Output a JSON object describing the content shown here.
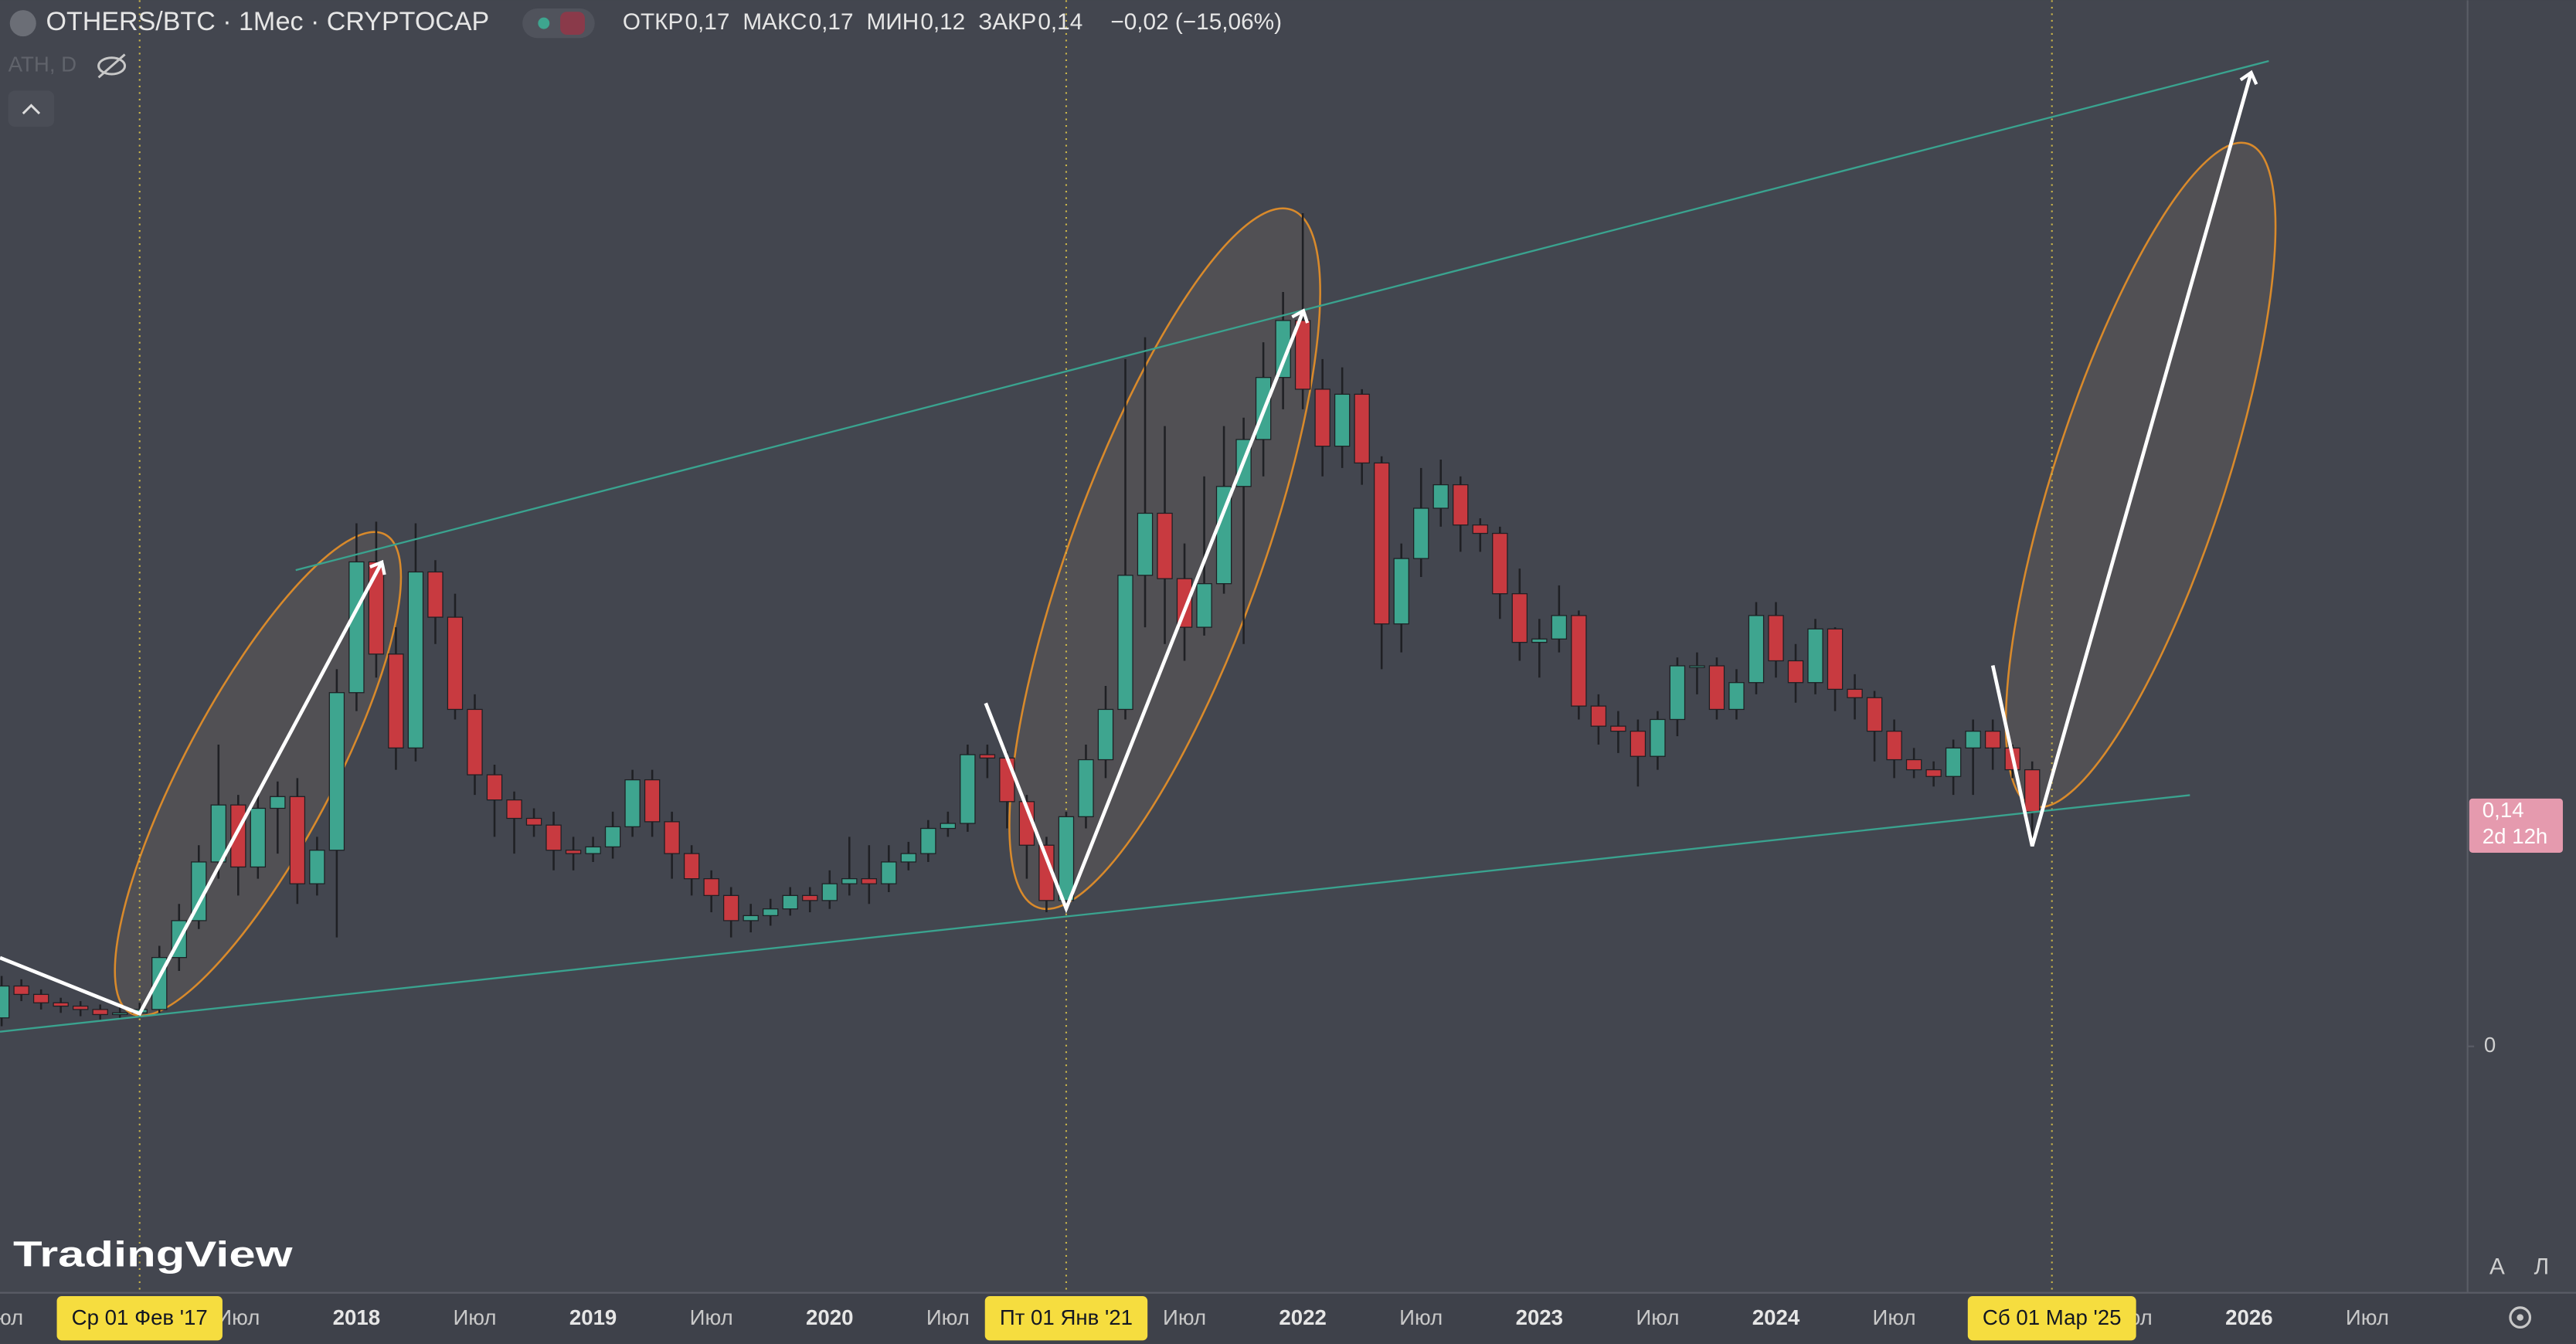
{
  "chart_data": {
    "type": "candlestick",
    "legend_bar": {
      "symbol": "OTHERS/BTC · 1Мес · CRYPTOCAP",
      "fields": [
        {
          "name": "ОТКР",
          "value": {
            "value": 0.17,
            "label": "0,17"
          }
        },
        {
          "name": "МАКС",
          "value": {
            "value": 0.17,
            "label": "0,17"
          }
        },
        {
          "name": "МИН",
          "value": {
            "value": 0.12,
            "label": "0,12"
          }
        },
        {
          "name": "ЗАКР",
          "value": {
            "value": 0.14,
            "label": "0,14"
          }
        }
      ],
      "change": "−0,02 (−15,06%)"
    },
    "indicator": "ATH, D",
    "categories": [
      "Июл",
      null,
      null,
      null,
      null,
      null,
      null,
      null,
      null,
      null,
      null,
      null,
      "Июл",
      null,
      null,
      null,
      null,
      null,
      "2018",
      null,
      null,
      null,
      null,
      null,
      "Июл",
      null,
      null,
      null,
      null,
      null,
      "2019",
      null,
      null,
      null,
      null,
      null,
      "Июл",
      null,
      null,
      null,
      null,
      null,
      "2020",
      null,
      null,
      null,
      null,
      null,
      "Июл",
      null,
      null,
      null,
      null,
      null,
      null,
      null,
      null,
      null,
      null,
      null,
      "Июл",
      null,
      null,
      null,
      null,
      null,
      "2022",
      null,
      null,
      null,
      null,
      null,
      "Июл",
      null,
      null,
      null,
      null,
      null,
      "2023",
      null,
      null,
      null,
      null,
      null,
      "Июл",
      null,
      null,
      null,
      null,
      null,
      "2024",
      null,
      null,
      null,
      null,
      null,
      "Июл",
      null,
      null,
      null,
      null,
      null,
      null,
      null,
      null,
      null,
      null,
      null,
      "Июл",
      null,
      null,
      null,
      null,
      null,
      "2026",
      null,
      null,
      null,
      null,
      null,
      "Июл"
    ],
    "open": [
      0.017,
      0.036,
      0.031,
      0.026,
      0.024,
      0.022,
      0.019,
      0.02,
      0.022,
      0.053,
      0.075,
      0.11,
      0.144,
      0.107,
      0.142,
      0.149,
      0.097,
      0.117,
      0.211,
      0.289,
      0.234,
      0.178,
      0.283,
      0.256,
      0.201,
      0.162,
      0.147,
      0.136,
      0.132,
      0.117,
      0.115,
      0.119,
      0.131,
      0.159,
      0.134,
      0.115,
      0.1,
      0.09,
      0.075,
      0.078,
      0.082,
      0.09,
      0.087,
      0.097,
      0.1,
      0.097,
      0.11,
      0.115,
      0.13,
      0.133,
      0.174,
      0.172,
      0.146,
      0.12,
      0.087,
      0.137,
      0.171,
      0.201,
      0.281,
      0.318,
      0.279,
      0.25,
      0.276,
      0.334,
      0.362,
      0.399,
      0.433,
      0.392,
      0.358,
      0.389,
      0.348,
      0.252,
      0.291,
      0.321,
      0.335,
      0.311,
      0.306,
      0.27,
      0.241,
      0.243,
      0.257,
      0.203,
      0.191,
      0.188,
      0.173,
      0.195,
      0.227,
      0.227,
      0.201,
      0.217,
      0.257,
      0.23,
      0.217,
      0.249,
      0.213,
      0.208,
      0.188,
      0.171,
      0.165,
      0.161,
      0.178,
      0.188,
      0.178,
      0.165,
      null,
      null,
      null,
      null,
      null,
      null,
      null,
      null,
      null,
      null,
      null,
      null,
      null,
      null,
      null,
      null,
      null
    ],
    "high": [
      0.042,
      0.04,
      0.034,
      0.029,
      0.027,
      0.025,
      0.024,
      0.026,
      0.06,
      0.085,
      0.12,
      0.18,
      0.15,
      0.15,
      0.158,
      0.16,
      0.125,
      0.225,
      0.312,
      0.313,
      0.25,
      0.312,
      0.29,
      0.27,
      0.21,
      0.168,
      0.152,
      0.142,
      0.14,
      0.125,
      0.125,
      0.14,
      0.165,
      0.165,
      0.14,
      0.12,
      0.105,
      0.095,
      0.085,
      0.088,
      0.095,
      0.095,
      0.105,
      0.125,
      0.12,
      0.12,
      0.122,
      0.135,
      0.14,
      0.18,
      0.18,
      0.176,
      0.15,
      0.125,
      0.14,
      0.18,
      0.215,
      0.41,
      0.423,
      0.37,
      0.3,
      0.34,
      0.37,
      0.375,
      0.42,
      0.45,
      0.497,
      0.41,
      0.405,
      0.392,
      0.352,
      0.3,
      0.345,
      0.35,
      0.34,
      0.315,
      0.31,
      0.285,
      0.255,
      0.275,
      0.26,
      0.21,
      0.2,
      0.195,
      0.2,
      0.232,
      0.235,
      0.232,
      0.225,
      0.265,
      0.265,
      0.24,
      0.255,
      0.25,
      0.222,
      0.212,
      0.195,
      0.178,
      0.17,
      0.183,
      0.195,
      0.195,
      0.18,
      0.17,
      null,
      null,
      null,
      null,
      null,
      null,
      null,
      null,
      null,
      null,
      null,
      null,
      null,
      null,
      null,
      null,
      null
    ],
    "low": [
      0.012,
      0.027,
      0.022,
      0.02,
      0.018,
      0.016,
      0.016,
      0.017,
      0.02,
      0.045,
      0.07,
      0.1,
      0.09,
      0.1,
      0.115,
      0.085,
      0.09,
      0.065,
      0.2,
      0.22,
      0.165,
      0.17,
      0.24,
      0.195,
      0.15,
      0.125,
      0.115,
      0.125,
      0.105,
      0.105,
      0.11,
      0.112,
      0.125,
      0.125,
      0.1,
      0.09,
      0.08,
      0.065,
      0.068,
      0.072,
      0.078,
      0.08,
      0.082,
      0.09,
      0.085,
      0.092,
      0.105,
      0.11,
      0.125,
      0.128,
      0.16,
      0.13,
      0.1,
      0.08,
      0.08,
      0.13,
      0.16,
      0.195,
      0.25,
      0.24,
      0.23,
      0.245,
      0.27,
      0.24,
      0.34,
      0.38,
      0.38,
      0.34,
      0.345,
      0.335,
      0.225,
      0.235,
      0.28,
      0.31,
      0.295,
      0.295,
      0.255,
      0.23,
      0.22,
      0.235,
      0.195,
      0.18,
      0.175,
      0.155,
      0.165,
      0.185,
      0.21,
      0.195,
      0.195,
      0.21,
      0.22,
      0.205,
      0.21,
      0.2,
      0.195,
      0.17,
      0.16,
      0.16,
      0.155,
      0.15,
      0.15,
      0.165,
      0.16,
      0.12,
      null,
      null,
      null,
      null,
      null,
      null,
      null,
      null,
      null,
      null,
      null,
      null,
      null,
      null,
      null,
      null,
      null
    ],
    "close": [
      0.036,
      0.031,
      0.026,
      0.024,
      0.022,
      0.019,
      0.02,
      0.022,
      0.053,
      0.075,
      0.11,
      0.144,
      0.107,
      0.142,
      0.149,
      0.097,
      0.117,
      0.211,
      0.289,
      0.234,
      0.178,
      0.283,
      0.256,
      0.201,
      0.162,
      0.147,
      0.136,
      0.132,
      0.117,
      0.115,
      0.119,
      0.131,
      0.159,
      0.134,
      0.115,
      0.1,
      0.09,
      0.075,
      0.078,
      0.082,
      0.09,
      0.087,
      0.097,
      0.1,
      0.097,
      0.11,
      0.115,
      0.13,
      0.133,
      0.174,
      0.172,
      0.146,
      0.12,
      0.087,
      0.137,
      0.171,
      0.201,
      0.281,
      0.318,
      0.279,
      0.25,
      0.276,
      0.334,
      0.362,
      0.399,
      0.433,
      0.392,
      0.358,
      0.389,
      0.348,
      0.252,
      0.291,
      0.321,
      0.335,
      0.311,
      0.306,
      0.27,
      0.241,
      0.243,
      0.257,
      0.203,
      0.191,
      0.188,
      0.173,
      0.195,
      0.227,
      0.227,
      0.201,
      0.217,
      0.257,
      0.23,
      0.217,
      0.249,
      0.213,
      0.208,
      0.188,
      0.171,
      0.165,
      0.161,
      0.178,
      0.188,
      0.178,
      0.165,
      0.14,
      null,
      null,
      null,
      null,
      null,
      null,
      null,
      null,
      null,
      null,
      null,
      null,
      null,
      null,
      null,
      null,
      null
    ],
    "up_color": "#3ea58f",
    "down_color": "#c83a40",
    "ylim": [
      -0.147,
      0.624
    ],
    "yticks": [
      0
    ],
    "grid": false,
    "last_price": {
      "value": 0.14,
      "label": "0,14"
    },
    "countdown": "2d 12h",
    "date_markers": [
      {
        "category_index": 7,
        "label": "Ср 01 Фев '17"
      },
      {
        "category_index": 54,
        "label": "Пт 01 Янв '21"
      },
      {
        "category_index": 104,
        "label": "Сб 01 Мар '25"
      }
    ]
  },
  "ui": {
    "scale_auto": "A",
    "scale_log": "Л",
    "brand": "TradingView"
  }
}
